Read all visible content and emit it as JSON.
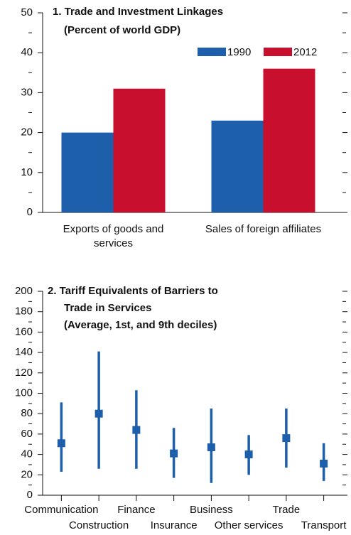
{
  "chart_data": [
    {
      "type": "bar",
      "title": "1. Trade and Investment Linkages",
      "subtitle": "(Percent of world GDP)",
      "categories": [
        "Exports of goods and services",
        "Sales of foreign affiliates"
      ],
      "series": [
        {
          "name": "1990",
          "color": "#1d5fab",
          "values": [
            20,
            23
          ]
        },
        {
          "name": "2012",
          "color": "#c8102e",
          "values": [
            31,
            36
          ]
        }
      ],
      "ylim": [
        0,
        50
      ],
      "yticks": [
        0,
        10,
        20,
        30,
        40,
        50
      ],
      "minor_yticks": [
        5,
        15,
        25,
        35,
        45
      ],
      "legend": "top-right"
    },
    {
      "type": "range",
      "title": [
        "2. Tariff Equivalents of Barriers to",
        "Trade in Services"
      ],
      "subtitle": "(Average, 1st, and 9th deciles)",
      "categories": [
        "Communication",
        "Construction",
        "Finance",
        "Insurance",
        "Business",
        "Other services",
        "Trade",
        "Transport"
      ],
      "color": "#1d5fab",
      "values": [
        51,
        80,
        64,
        41,
        47,
        40,
        56,
        31
      ],
      "low": [
        23,
        26,
        26,
        17,
        12,
        20,
        27,
        14
      ],
      "high": [
        91,
        141,
        103,
        66,
        85,
        59,
        85,
        51
      ],
      "ylim": [
        0,
        200
      ],
      "yticks": [
        0,
        20,
        40,
        60,
        80,
        100,
        120,
        140,
        160,
        180,
        200
      ],
      "minor_yticks": [
        10,
        30,
        50,
        70,
        90,
        110,
        130,
        150,
        170,
        190
      ]
    }
  ]
}
